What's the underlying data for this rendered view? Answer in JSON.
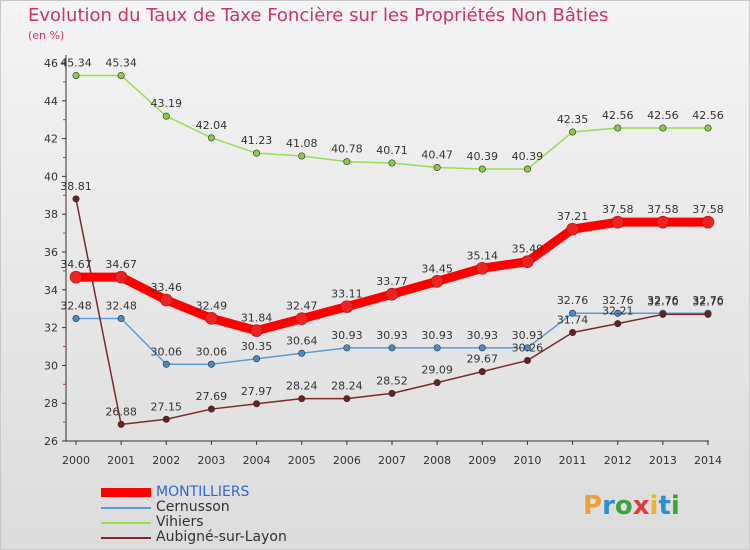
{
  "title": "Evolution du Taux de Taxe Foncière sur les Propriétés Non Bâties",
  "subtitle": "(en %)",
  "logo": {
    "text": "Proxiti",
    "letters": [
      {
        "ch": "P",
        "color": "#e8a23a"
      },
      {
        "ch": "r",
        "color": "#2a8fd0"
      },
      {
        "ch": "o",
        "color": "#3aa53a"
      },
      {
        "ch": "x",
        "color": "#e03c3c"
      },
      {
        "ch": "i",
        "color": "#f0b030"
      },
      {
        "ch": "t",
        "color": "#2a8fd0"
      },
      {
        "ch": "i",
        "color": "#3aa53a"
      }
    ]
  },
  "chart_data": {
    "type": "line",
    "x": [
      "2000",
      "2001",
      "2002",
      "2003",
      "2004",
      "2005",
      "2006",
      "2007",
      "2008",
      "2009",
      "2010",
      "2011",
      "2012",
      "2013",
      "2014"
    ],
    "ylim": [
      26,
      46
    ],
    "yticks": [
      26,
      28,
      30,
      32,
      34,
      36,
      38,
      40,
      42,
      44,
      46
    ],
    "grid": false,
    "legend_position": "bottom-left",
    "series": [
      {
        "name": "MONTILLIERS",
        "color": "#ff0000",
        "marker": "#ee2222",
        "width": 9,
        "values": [
          34.67,
          34.67,
          33.46,
          32.49,
          31.84,
          32.47,
          33.11,
          33.77,
          34.45,
          35.14,
          35.49,
          37.21,
          37.58,
          37.58,
          37.58
        ],
        "labels": [
          "34.67",
          "34.67",
          "33.46",
          "32.49",
          "31.84",
          "32.47",
          "33.11",
          "33.77",
          "34.45",
          "35.14",
          "35.49",
          "37.21",
          "37.58",
          "37.58",
          "37.58"
        ]
      },
      {
        "name": "Cernusson",
        "color": "#5b9bd5",
        "marker": "#4a8ac4",
        "width": 1.5,
        "values": [
          32.48,
          32.48,
          30.06,
          30.06,
          30.35,
          30.64,
          30.93,
          30.93,
          30.93,
          30.93,
          30.93,
          32.76,
          32.76,
          32.76,
          32.76
        ],
        "labels": [
          "32.48",
          "32.48",
          "30.06",
          "30.06",
          "30.35",
          "30.64",
          "30.93",
          "30.93",
          "30.93",
          "30.93",
          "30.93",
          "32.76",
          "32.76",
          "32.76",
          "32.76"
        ]
      },
      {
        "name": "Vihiers",
        "color": "#99dd55",
        "marker": "#88cc44",
        "width": 1.5,
        "values": [
          45.34,
          45.34,
          43.19,
          42.04,
          41.23,
          41.08,
          40.78,
          40.71,
          40.47,
          40.39,
          40.39,
          42.35,
          42.56,
          42.56,
          42.56
        ],
        "labels": [
          "45.34",
          "45.34",
          "43.19",
          "42.04",
          "41.23",
          "41.08",
          "40.78",
          "40.71",
          "40.47",
          "40.39",
          "40.39",
          "42.35",
          "42.56",
          "42.56",
          "42.56"
        ]
      },
      {
        "name": "Aubigné-sur-Layon",
        "color": "#7a2a2a",
        "marker": "#6a2020",
        "width": 1.5,
        "values": [
          38.81,
          26.88,
          27.15,
          27.69,
          27.97,
          28.24,
          28.24,
          28.52,
          29.09,
          29.67,
          30.26,
          31.74,
          32.21,
          32.7,
          32.7
        ],
        "labels": [
          "38.81",
          "26.88",
          "27.15",
          "27.69",
          "27.97",
          "28.24",
          "28.24",
          "28.52",
          "29.09",
          "29.67",
          "30.26",
          "31.74",
          "32.21",
          "32.70",
          "32.70"
        ]
      }
    ]
  }
}
